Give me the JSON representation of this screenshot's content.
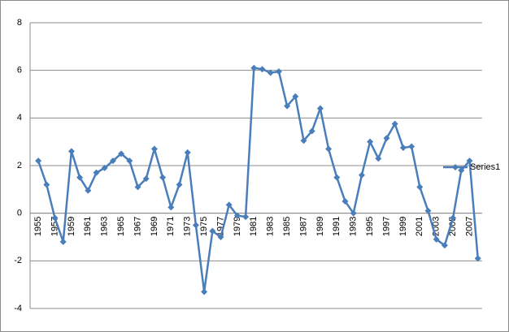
{
  "chart_data": {
    "type": "line",
    "categories": [
      "1955",
      null,
      "1957",
      null,
      "1959",
      null,
      "1961",
      null,
      "1963",
      null,
      "1965",
      null,
      "1967",
      null,
      "1969",
      null,
      "1971",
      null,
      "1973",
      null,
      "1975",
      null,
      "1977",
      null,
      "1979",
      null,
      "1981",
      null,
      "1983",
      null,
      "1985",
      null,
      "1987",
      null,
      "1989",
      null,
      "1991",
      null,
      "1993",
      null,
      "1995",
      null,
      "1997",
      null,
      "1999",
      null,
      "2001",
      null,
      "2003",
      null,
      "2005",
      null,
      "2007",
      null
    ],
    "series": [
      {
        "name": "Series1",
        "color": "#4a7ebb",
        "values": [
          2.2,
          1.2,
          -0.2,
          -1.2,
          2.6,
          1.5,
          0.95,
          1.7,
          1.9,
          2.2,
          2.5,
          2.2,
          1.1,
          1.45,
          2.7,
          1.5,
          0.25,
          1.2,
          2.55,
          -0.5,
          -3.3,
          -0.75,
          -1.0,
          0.35,
          -0.1,
          -0.15,
          6.1,
          6.05,
          5.9,
          5.95,
          4.5,
          4.9,
          3.05,
          3.45,
          4.4,
          2.7,
          1.5,
          0.5,
          0.0,
          1.6,
          3.0,
          2.3,
          3.15,
          3.75,
          2.75,
          2.8,
          1.1,
          0.1,
          -1.1,
          -1.35,
          -0.2,
          1.8,
          2.2,
          -1.9
        ]
      }
    ],
    "ylim": [
      -4,
      8
    ],
    "yticks": [
      -4,
      -2,
      0,
      2,
      4,
      6,
      8
    ],
    "grid": true,
    "legend": "right"
  }
}
